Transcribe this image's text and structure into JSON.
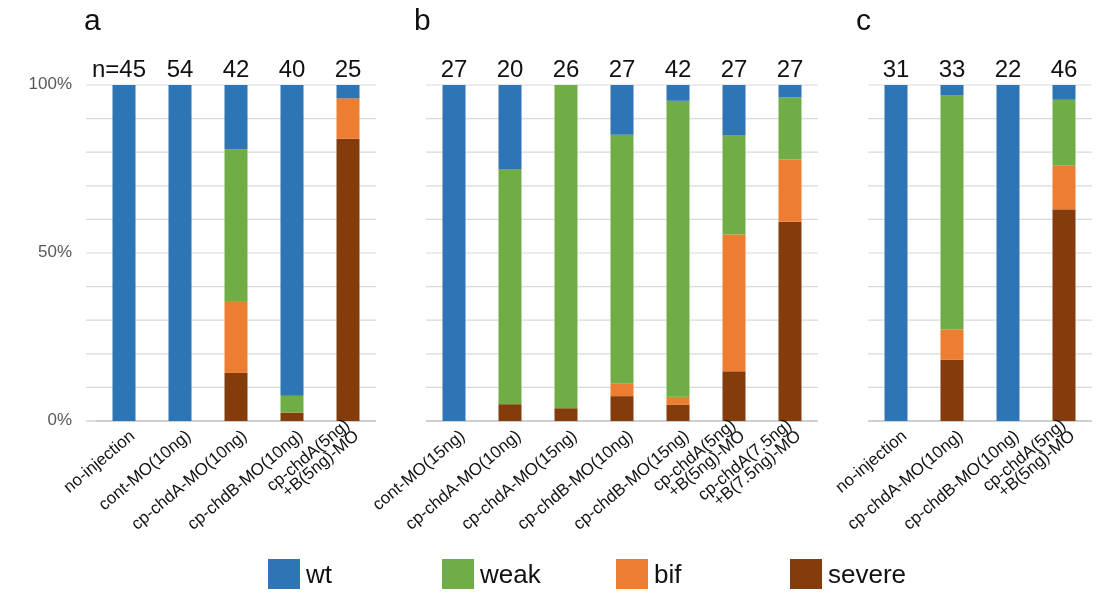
{
  "chart_data": [
    {
      "type": "bar",
      "title": "a",
      "stacked": true,
      "grid": "y",
      "legend": "bottom",
      "ylim": [
        0,
        100
      ],
      "yticks": [
        {
          "value": 0,
          "label": "0%"
        },
        {
          "value": 10,
          "label": null
        },
        {
          "value": 20,
          "label": null
        },
        {
          "value": 30,
          "label": null
        },
        {
          "value": 40,
          "label": null
        },
        {
          "value": 50,
          "label": "50%"
        },
        {
          "value": 60,
          "label": null
        },
        {
          "value": 70,
          "label": null
        },
        {
          "value": 80,
          "label": null
        },
        {
          "value": 90,
          "label": null
        },
        {
          "value": 100,
          "label": "100%"
        }
      ],
      "categories": [
        "no-injection",
        "cont-MO(10ng)",
        "cp-chdA-MO(10ng)",
        "cp-chdB-MO(10ng)",
        "cp-chdA(5ng)\n+B(5ng)-MO"
      ],
      "annotations": [
        {
          "text": "n=45",
          "x": "no-injection",
          "y": 100
        },
        {
          "text": "54",
          "x": "cont-MO(10ng)",
          "y": 100
        },
        {
          "text": "42",
          "x": "cp-chdA-MO(10ng)",
          "y": 100
        },
        {
          "text": "40",
          "x": "cp-chdB-MO(10ng)",
          "y": 100
        },
        {
          "text": "25",
          "x": "cp-chdA(5ng)\n+B(5ng)-MO",
          "y": 100
        }
      ],
      "series": [
        {
          "name": "severe",
          "color": "#843c0c",
          "values": [
            0,
            0,
            14.3,
            2.5,
            84
          ]
        },
        {
          "name": "bif",
          "color": "#ed7d31",
          "values": [
            0,
            0,
            21.4,
            0,
            12
          ]
        },
        {
          "name": "weak",
          "color": "#70ad47",
          "values": [
            0,
            0,
            45.2,
            5,
            0
          ]
        },
        {
          "name": "wt",
          "color": "#2e75b6",
          "values": [
            100,
            100,
            19.1,
            92.5,
            4
          ]
        }
      ]
    },
    {
      "type": "bar",
      "title": "b",
      "stacked": true,
      "grid": "y",
      "tick_labels": "x",
      "ylim": [
        0,
        100
      ],
      "yticks": [
        0,
        10,
        20,
        30,
        40,
        50,
        60,
        70,
        80,
        90,
        100
      ],
      "categories": [
        "cont-MO(15ng)",
        "cp-chdA-MO(10ng)",
        "cp-chdA-MO(15ng)",
        "cp-chdB-MO(10ng)",
        "cp-chdB-MO(15ng)",
        "cp-chdA(5ng)\n+B(5ng)-MO",
        "cp-chdA(7.5ng)\n+B(7.5ng)-MO"
      ],
      "annotations": [
        {
          "text": "27",
          "x": "cont-MO(15ng)",
          "y": 100
        },
        {
          "text": "20",
          "x": "cp-chdA-MO(10ng)",
          "y": 100
        },
        {
          "text": "26",
          "x": "cp-chdA-MO(15ng)",
          "y": 100
        },
        {
          "text": "27",
          "x": "cp-chdB-MO(10ng)",
          "y": 100
        },
        {
          "text": "42",
          "x": "cp-chdB-MO(15ng)",
          "y": 100
        },
        {
          "text": "27",
          "x": "cp-chdA(5ng)\n+B(5ng)-MO",
          "y": 100
        },
        {
          "text": "27",
          "x": "cp-chdA(7.5ng)\n+B(7.5ng)-MO",
          "y": 100
        }
      ],
      "series": [
        {
          "color": "#843c0c",
          "values": [
            0,
            5,
            3.8,
            7.4,
            4.8,
            14.8,
            59.3
          ]
        },
        {
          "color": "#ed7d31",
          "values": [
            0,
            0,
            0,
            3.7,
            2.4,
            40.7,
            18.5
          ]
        },
        {
          "color": "#70ad47",
          "values": [
            0,
            70,
            96.2,
            74.1,
            88.1,
            29.6,
            18.5
          ]
        },
        {
          "color": "#2e75b6",
          "values": [
            100,
            25,
            0,
            14.8,
            4.7,
            14.9,
            3.7
          ]
        }
      ]
    },
    {
      "type": "bar",
      "title": "c",
      "stacked": true,
      "grid": "y",
      "tick_labels": "x",
      "ylim": [
        0,
        100
      ],
      "yticks": [
        0,
        10,
        20,
        30,
        40,
        50,
        60,
        70,
        80,
        90,
        100
      ],
      "categories": [
        "no-injection",
        "cp-chdA-MO(10ng)",
        "cp-chdB-MO(10ng)",
        "cp-chdA(5ng)\n+B(5ng)-MO"
      ],
      "annotations": [
        {
          "text": "31",
          "x": "no-injection",
          "y": 100
        },
        {
          "text": "33",
          "x": "cp-chdA-MO(10ng)",
          "y": 100
        },
        {
          "text": "22",
          "x": "cp-chdB-MO(10ng)",
          "y": 100
        },
        {
          "text": "46",
          "x": "cp-chdA(5ng)\n+B(5ng)-MO",
          "y": 100
        }
      ],
      "series": [
        {
          "color": "#843c0c",
          "values": [
            0,
            18.2,
            0,
            63
          ]
        },
        {
          "color": "#ed7d31",
          "values": [
            0,
            9.1,
            0,
            13
          ]
        },
        {
          "color": "#70ad47",
          "values": [
            0,
            69.7,
            0,
            19.6
          ]
        },
        {
          "color": "#2e75b6",
          "values": [
            100,
            3,
            100,
            4.4
          ]
        }
      ]
    }
  ]
}
